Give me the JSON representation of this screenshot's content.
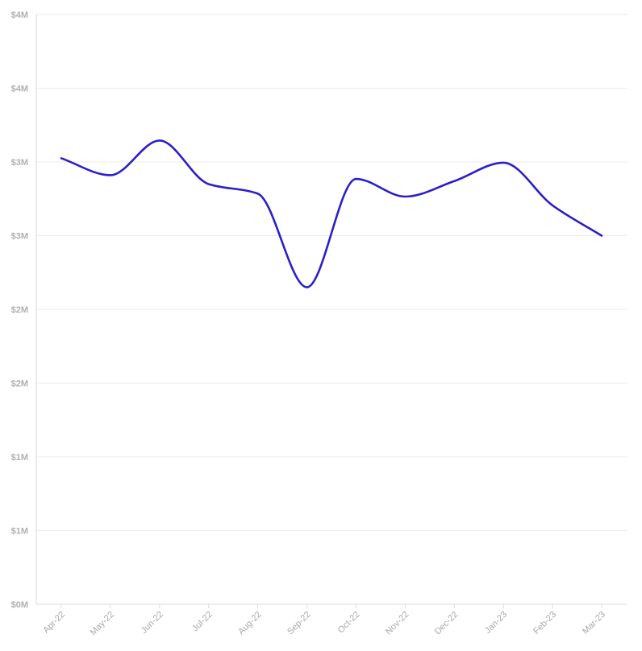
{
  "chart_data": {
    "type": "line",
    "title": "",
    "xlabel": "",
    "ylabel": "",
    "categories": [
      "Apr-22",
      "May-22",
      "Jun-22",
      "Jul-22",
      "Aug-22",
      "Sep-22",
      "Oct-22",
      "Nov-22",
      "Dec-22",
      "Jan-23",
      "Feb-23",
      "Mar-23"
    ],
    "series": [
      {
        "color": "#2a1fc9",
        "values": [
          3025000,
          2910000,
          3145000,
          2850000,
          2785000,
          2150000,
          2885000,
          2765000,
          2870000,
          2995000,
          2705000,
          2500000
        ]
      }
    ],
    "ylim": [
      0,
      4000000
    ],
    "y_ticks": [
      {
        "value": 0,
        "label": "$0M"
      },
      {
        "value": 500000,
        "label": "$1M"
      },
      {
        "value": 1000000,
        "label": "$1M"
      },
      {
        "value": 1500000,
        "label": "$2M"
      },
      {
        "value": 2000000,
        "label": "$2M"
      },
      {
        "value": 2500000,
        "label": "$3M"
      },
      {
        "value": 3000000,
        "label": "$3M"
      },
      {
        "value": 3500000,
        "label": "$4M"
      },
      {
        "value": 4000000,
        "label": "$4M"
      }
    ],
    "grid": true,
    "legend": "none",
    "colors": {
      "line": "#2a1fc9",
      "grid": "#ebebeb",
      "tick_text": "#b0b0b0"
    }
  }
}
